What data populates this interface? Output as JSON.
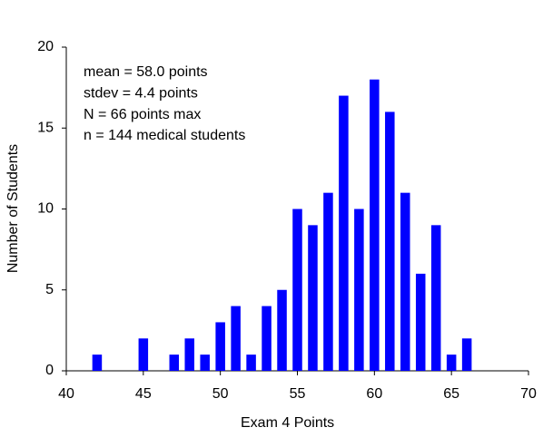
{
  "chart_data": {
    "type": "bar",
    "x_label": "Exam 4 Points",
    "y_label": "Number of Students",
    "annotations": [
      "mean = 58.0 points",
      "stdev = 4.4 points",
      "N = 66 points max",
      "n = 144 medical students"
    ],
    "x": [
      42,
      45,
      47,
      48,
      49,
      50,
      51,
      52,
      53,
      54,
      55,
      56,
      57,
      58,
      59,
      60,
      61,
      62,
      63,
      64,
      65,
      66
    ],
    "values": [
      1,
      2,
      1,
      2,
      1,
      3,
      4,
      1,
      4,
      5,
      10,
      9,
      11,
      17,
      10,
      18,
      16,
      11,
      6,
      9,
      1,
      2
    ],
    "color": "#0000ff",
    "xlim": [
      40,
      70
    ],
    "xticks": [
      40,
      45,
      50,
      55,
      60,
      65,
      70
    ],
    "ylim": [
      0,
      20
    ],
    "yticks": [
      0,
      5,
      10,
      15,
      20
    ],
    "grid": false
  }
}
